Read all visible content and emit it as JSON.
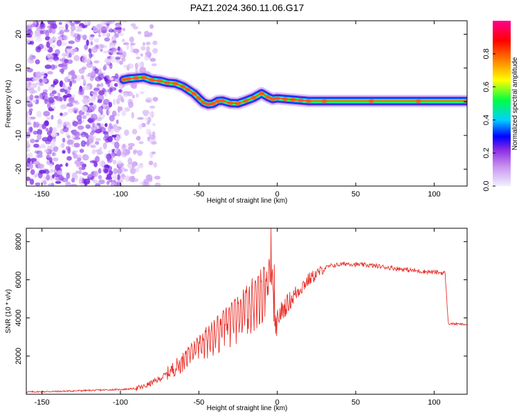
{
  "title": "PAZ1.2024.360.11.06.G17",
  "chart_data": [
    {
      "type": "heatmap",
      "xlabel": "Height of straight line (km)",
      "ylabel": "Frequency (Hz)",
      "xlim": [
        -160,
        121
      ],
      "ylim": [
        -25,
        24
      ],
      "xticks": [
        -150,
        -100,
        -50,
        0,
        50,
        100
      ],
      "yticks": [
        -20,
        -10,
        0,
        10,
        20
      ],
      "colorbar": {
        "label": "Normalized spectral amplitude",
        "range": [
          0.0,
          1.0
        ],
        "ticks": [
          0.0,
          0.2,
          0.4,
          0.6,
          0.8
        ],
        "colormap": [
          "#f0f0ff",
          "#8a2be2",
          "#0000ff",
          "#00d0ff",
          "#00ff00",
          "#ffff00",
          "#ff8000",
          "#ff0000",
          "#ff00a0"
        ]
      },
      "ridge": [
        {
          "x": -98,
          "y": 6.5
        },
        {
          "x": -95,
          "y": 6.8
        },
        {
          "x": -90,
          "y": 7.0
        },
        {
          "x": -85,
          "y": 7.2
        },
        {
          "x": -80,
          "y": 6.4
        },
        {
          "x": -75,
          "y": 6.2
        },
        {
          "x": -70,
          "y": 5.6
        },
        {
          "x": -65,
          "y": 5.4
        },
        {
          "x": -60,
          "y": 4.5
        },
        {
          "x": -57,
          "y": 3.6
        },
        {
          "x": -53,
          "y": 2.4
        },
        {
          "x": -50,
          "y": 1.0
        },
        {
          "x": -47,
          "y": -0.3
        },
        {
          "x": -44,
          "y": -0.8
        },
        {
          "x": -41,
          "y": -0.6
        },
        {
          "x": -38,
          "y": 0.2
        },
        {
          "x": -35,
          "y": 0.3
        },
        {
          "x": -30,
          "y": -0.4
        },
        {
          "x": -25,
          "y": -0.5
        },
        {
          "x": -20,
          "y": 0.3
        },
        {
          "x": -15,
          "y": 1.2
        },
        {
          "x": -10,
          "y": 2.5
        },
        {
          "x": -6,
          "y": 1.4
        },
        {
          "x": -3,
          "y": 0.8
        },
        {
          "x": 0,
          "y": 1.0
        },
        {
          "x": 5,
          "y": 0.8
        },
        {
          "x": 10,
          "y": 0.6
        },
        {
          "x": 15,
          "y": 0.4
        },
        {
          "x": 20,
          "y": 0.2
        },
        {
          "x": 30,
          "y": 0.2
        },
        {
          "x": 60,
          "y": 0.2
        },
        {
          "x": 90,
          "y": 0.2
        },
        {
          "x": 121,
          "y": 0.2
        }
      ]
    },
    {
      "type": "line",
      "xlabel": "Height of straight line (km)",
      "ylabel": "SNR (10 * v/v)",
      "xlim": [
        -160,
        121
      ],
      "ylim": [
        0,
        8700
      ],
      "xticks": [
        -150,
        -100,
        -50,
        0,
        50,
        100
      ],
      "yticks": [
        2000,
        4000,
        6000,
        8000
      ],
      "color": "#e8302a",
      "series": [
        {
          "x": [
            -160,
            -140,
            -120,
            -100,
            -90,
            -85,
            -80,
            -75,
            -70,
            -65,
            -60,
            -55,
            -50,
            -45,
            -40,
            -35,
            -30,
            -25,
            -20,
            -15,
            -10,
            -7,
            -5,
            -3,
            -1,
            0,
            5,
            10,
            15,
            20,
            25,
            30,
            35,
            40,
            45,
            50,
            55,
            60,
            70,
            80,
            90,
            100,
            107,
            108,
            109,
            110,
            115,
            121
          ],
          "y": [
            120,
            150,
            200,
            250,
            300,
            400,
            600,
            800,
            1100,
            1400,
            1700,
            2000,
            2300,
            2700,
            3000,
            3300,
            3600,
            3900,
            4300,
            4700,
            5000,
            5200,
            5400,
            5100,
            2800,
            4000,
            4600,
            5100,
            5600,
            6000,
            6300,
            6600,
            6750,
            6800,
            6850,
            6800,
            6780,
            6750,
            6650,
            6550,
            6450,
            6400,
            6350,
            5000,
            3700,
            3700,
            3680,
            3650
          ]
        }
      ],
      "peaks": [
        {
          "x": -55,
          "y": 2500
        },
        {
          "x": -4,
          "y": 8700
        },
        {
          "x": -2,
          "y": 6800
        }
      ]
    }
  ]
}
